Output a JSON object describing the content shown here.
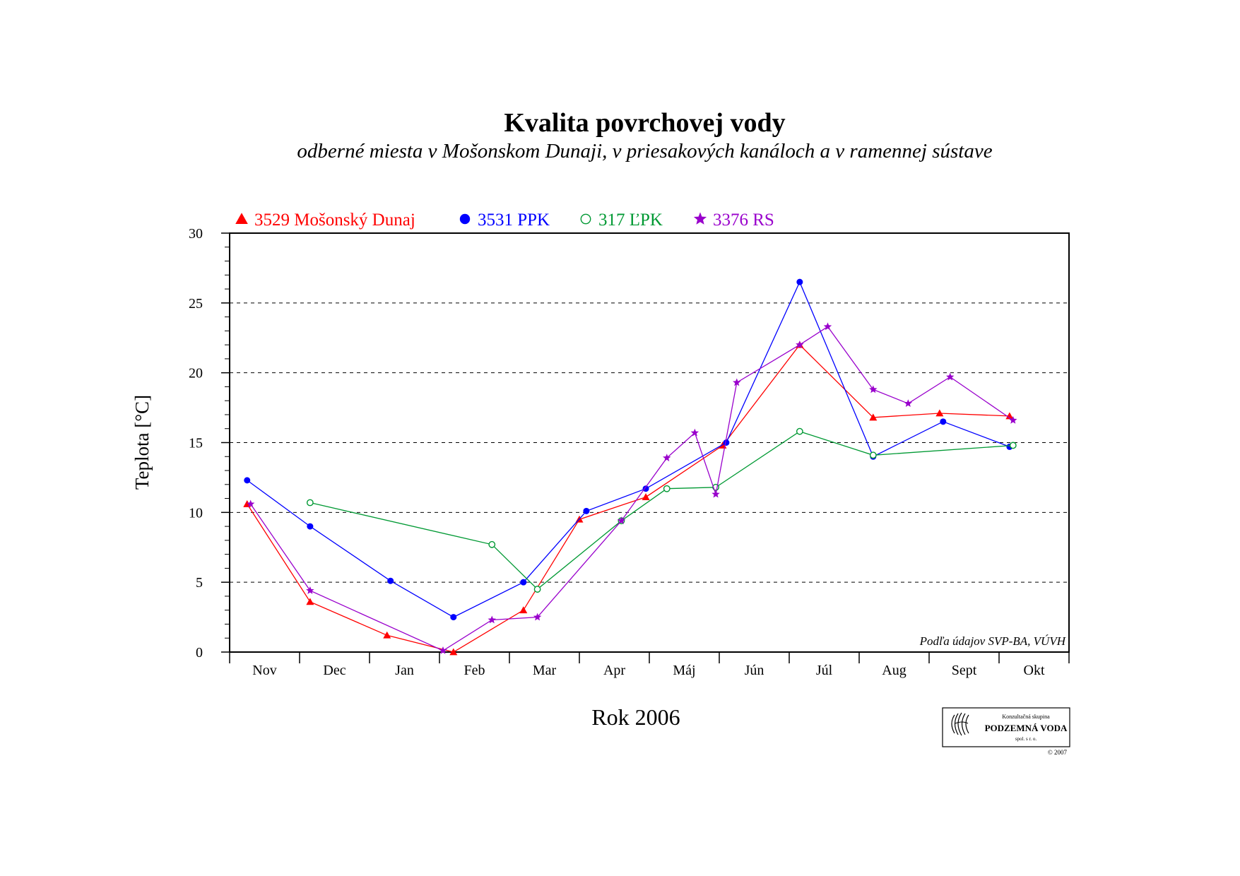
{
  "page": {
    "title": "Kvalita povrchovej vody",
    "subtitle": "odberné miesta v Mošonskom Dunaji, v priesakových kanáloch a v ramennej sústave",
    "source_note": "Podľa údajov SVP-BA, VÚVH",
    "logo": {
      "line1": "Konzultačná skupina",
      "line2": "PODZEMNÁ VODA",
      "line3": "spol. s r. o.",
      "copyright": "© 2007"
    }
  },
  "chart_data": {
    "type": "line",
    "xlabel": "Rok 2006",
    "ylabel": "Teplota [°C]",
    "ylim": [
      0,
      30
    ],
    "yticks": [
      0,
      5,
      10,
      15,
      20,
      25,
      30
    ],
    "grid": "horizontal dashed",
    "legend_position": "top-left",
    "categories": [
      "Nov",
      "Dec",
      "Jan",
      "Feb",
      "Mar",
      "Apr",
      "Máj",
      "Jún",
      "Júl",
      "Aug",
      "Sept",
      "Okt"
    ],
    "x_range": [
      0,
      12
    ],
    "series": [
      {
        "name": "3529 Mošonský Dunaj",
        "color": "#ff0000",
        "marker": "triangle",
        "x": [
          0.25,
          1.15,
          2.25,
          3.2,
          4.2,
          5.0,
          5.95,
          7.05,
          8.15,
          9.2,
          10.15,
          11.15
        ],
        "y": [
          10.6,
          3.6,
          1.2,
          0.0,
          3.0,
          9.5,
          11.1,
          14.8,
          22.0,
          16.8,
          17.1,
          16.9
        ]
      },
      {
        "name": "3531 PPK",
        "color": "#0000ff",
        "marker": "filled-circle",
        "x": [
          0.25,
          1.15,
          2.3,
          3.2,
          4.2,
          5.1,
          5.95,
          7.1,
          8.15,
          9.2,
          10.2,
          11.15
        ],
        "y": [
          12.3,
          9.0,
          5.1,
          2.5,
          5.0,
          10.1,
          11.7,
          15.0,
          26.5,
          14.0,
          16.5,
          14.7
        ]
      },
      {
        "name": "317 ĽPK",
        "color": "#009933",
        "marker": "open-circle",
        "x": [
          1.15,
          3.75,
          4.4,
          5.6,
          6.25,
          6.95,
          8.15,
          9.2,
          11.2
        ],
        "y": [
          10.7,
          7.7,
          4.5,
          9.4,
          11.7,
          11.8,
          15.8,
          14.1,
          14.8
        ]
      },
      {
        "name": "3376 RS",
        "color": "#9900cc",
        "marker": "star",
        "x": [
          0.3,
          1.15,
          3.05,
          3.75,
          4.4,
          5.6,
          6.25,
          6.65,
          6.95,
          7.25,
          8.15,
          8.55,
          9.2,
          9.7,
          10.3,
          11.2
        ],
        "y": [
          10.6,
          4.4,
          0.1,
          2.3,
          2.5,
          9.4,
          13.9,
          15.7,
          11.3,
          19.3,
          22.0,
          23.3,
          18.8,
          17.8,
          19.7,
          16.6
        ]
      }
    ]
  }
}
